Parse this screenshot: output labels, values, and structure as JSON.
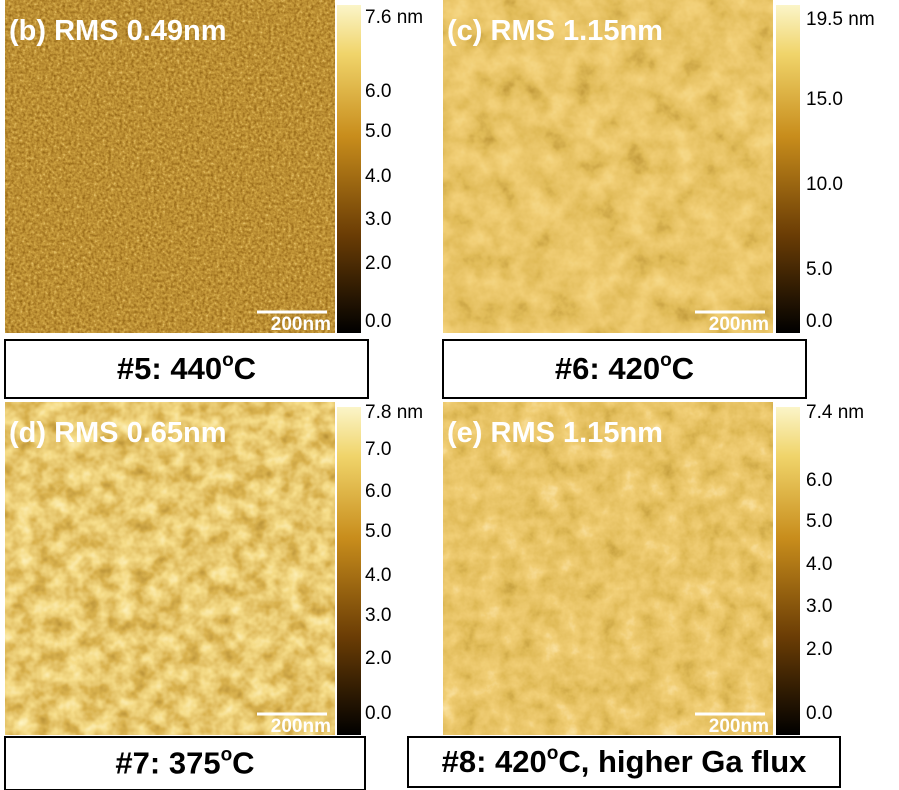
{
  "panels": [
    {
      "label": "(b) RMS 0.49nm",
      "colorbar": [
        "7.6 nm",
        "6.0",
        "5.0",
        "4.0",
        "3.0",
        "2.0",
        "0.0"
      ],
      "scale": "200nm",
      "caption": {
        "text": "#5: 440",
        "sup": "o",
        "tail": "C"
      }
    },
    {
      "label": "(c) RMS 1.15nm",
      "colorbar": [
        "19.5 nm",
        "15.0",
        "10.0",
        "5.0",
        "0.0"
      ],
      "scale": "200nm",
      "caption": {
        "text": "#6: 420",
        "sup": "o",
        "tail": "C"
      }
    },
    {
      "label": "(d) RMS 0.65nm",
      "colorbar": [
        "7.8 nm",
        "7.0",
        "6.0",
        "5.0",
        "4.0",
        "3.0",
        "2.0",
        "0.0"
      ],
      "scale": "200nm",
      "caption": {
        "text": "#7: 375",
        "sup": "o",
        "tail": "C"
      }
    },
    {
      "label": "(e) RMS 1.15nm",
      "colorbar": [
        "7.4 nm",
        "6.0",
        "5.0",
        "4.0",
        "3.0",
        "2.0",
        "0.0"
      ],
      "scale": "200nm",
      "caption": {
        "text": "#8: 420",
        "sup": "o",
        "tail": "C, higher Ga flux"
      }
    }
  ]
}
